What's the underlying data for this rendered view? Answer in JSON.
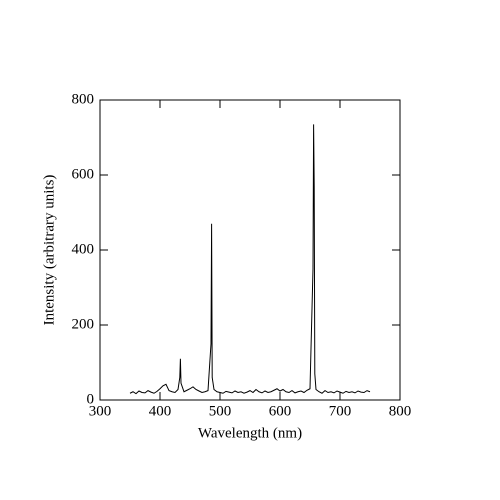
{
  "chart_data": {
    "type": "line",
    "xlabel": "Wavelength (nm)",
    "ylabel": "Intensity (arbitrary units)",
    "color": "#000000",
    "x": [
      350,
      355,
      360,
      365,
      370,
      375,
      380,
      385,
      390,
      395,
      400,
      405,
      410,
      415,
      420,
      425,
      430,
      433,
      434,
      435,
      440,
      445,
      450,
      455,
      460,
      465,
      470,
      475,
      480,
      485,
      486,
      487,
      490,
      495,
      500,
      505,
      510,
      515,
      520,
      525,
      530,
      535,
      540,
      545,
      550,
      555,
      560,
      565,
      570,
      575,
      580,
      585,
      590,
      595,
      600,
      605,
      610,
      615,
      620,
      625,
      630,
      635,
      640,
      645,
      650,
      655,
      656,
      657,
      658,
      660,
      665,
      670,
      675,
      680,
      685,
      690,
      695,
      700,
      705,
      710,
      715,
      720,
      725,
      730,
      735,
      740,
      745,
      750
    ],
    "values": [
      18,
      22,
      17,
      24,
      20,
      19,
      25,
      21,
      18,
      23,
      30,
      38,
      42,
      25,
      22,
      20,
      28,
      60,
      110,
      45,
      22,
      26,
      30,
      35,
      28,
      24,
      20,
      22,
      25,
      150,
      470,
      60,
      28,
      22,
      20,
      18,
      23,
      21,
      19,
      24,
      20,
      22,
      18,
      21,
      25,
      20,
      28,
      22,
      19,
      24,
      20,
      22,
      26,
      30,
      24,
      28,
      22,
      20,
      25,
      19,
      22,
      24,
      20,
      26,
      30,
      350,
      735,
      570,
      70,
      28,
      22,
      18,
      25,
      20,
      22,
      19,
      24,
      21,
      18,
      23,
      20,
      22,
      19,
      24,
      21,
      20,
      25,
      22
    ],
    "xlim": [
      300,
      800
    ],
    "ylim": [
      0,
      800
    ],
    "xticks": [
      300,
      400,
      500,
      600,
      700,
      800
    ],
    "yticks": [
      0,
      200,
      400,
      600,
      800
    ]
  }
}
